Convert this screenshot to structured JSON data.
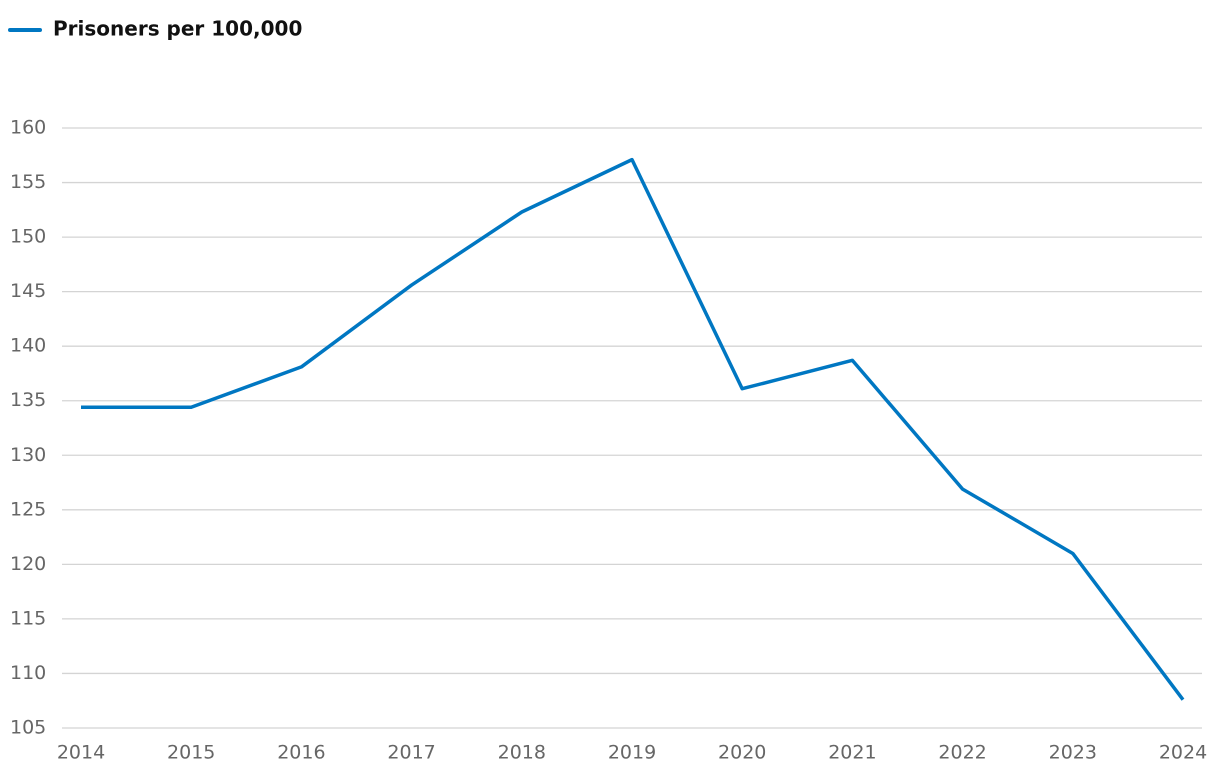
{
  "chart_data": {
    "type": "line",
    "x": [
      "2014",
      "2015",
      "2016",
      "2017",
      "2018",
      "2019",
      "2020",
      "2021",
      "2022",
      "2023",
      "2024"
    ],
    "series": [
      {
        "name": "Prisoners per 100,000",
        "color": "#0077c2",
        "values": [
          134.4,
          134.4,
          138.1,
          145.6,
          152.3,
          157.1,
          136.1,
          138.7,
          126.9,
          121.0,
          107.6
        ]
      }
    ],
    "ylim": [
      105,
      160
    ],
    "yticks": [
      105,
      110,
      115,
      120,
      125,
      130,
      135,
      140,
      145,
      150,
      155,
      160
    ],
    "grid": true,
    "legend": "top-left"
  }
}
